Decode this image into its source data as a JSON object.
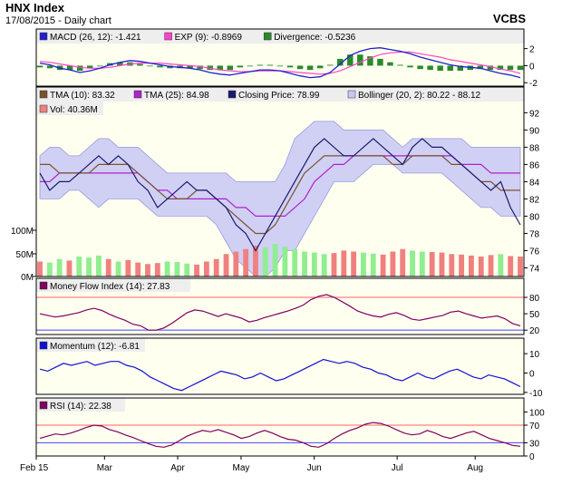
{
  "header": {
    "title": "HNX Index",
    "subtitle": "17/08/2015 - Daily chart",
    "brand": "VCBS"
  },
  "colors": {
    "plot_bg": "#fffff0",
    "legend_bg": "#eeeeee",
    "band_fill": "#c8c8f4",
    "close": "#1a1a6e",
    "tma10": "#7a5230",
    "tma25": "#b020d0",
    "macd": "#2020d0",
    "exp": "#ff44cc",
    "div": "#2a8a2a",
    "vol_up": "#90ee90",
    "vol_down": "#f08080",
    "mfi": "#800060",
    "momentum": "#1010d0",
    "rsi": "#800060",
    "ref_red": "#ff6060",
    "ref_blue": "#4444ff"
  },
  "chart_data": [
    {
      "type": "line",
      "name": "macd-panel",
      "legend": [
        "MACD (26, 12): -1.421",
        "EXP (9): -0.8969",
        "Divergence: -0.5236"
      ],
      "y_ticks": [
        "2",
        "0",
        "-2"
      ],
      "tick_values": [
        2,
        0,
        -2
      ],
      "ylim": [
        -2.4,
        2.6
      ],
      "macd": [
        0.3,
        0.1,
        -0.3,
        -0.5,
        -0.8,
        -0.6,
        -0.3,
        0.1,
        0.4,
        0.6,
        0.5,
        0.3,
        0.1,
        -0.1,
        -0.2,
        -0.3,
        -0.5,
        -0.8,
        -1.0,
        -1.1,
        -0.9,
        -0.7,
        -0.5,
        -0.5,
        -0.6,
        -0.9,
        -1.2,
        -1.4,
        -1.3,
        -0.8,
        0.2,
        1.2,
        1.7,
        2.0,
        2.1,
        1.9,
        1.7,
        1.4,
        1.0,
        0.7,
        0.4,
        0.1,
        -0.1,
        -0.2,
        -0.3,
        -0.6,
        -0.9,
        -1.1,
        -1.4
      ],
      "exp": [
        0.5,
        0.4,
        0.2,
        0.0,
        -0.2,
        -0.3,
        -0.3,
        -0.2,
        0.0,
        0.2,
        0.3,
        0.3,
        0.3,
        0.2,
        0.1,
        0.0,
        -0.1,
        -0.3,
        -0.5,
        -0.6,
        -0.7,
        -0.7,
        -0.6,
        -0.6,
        -0.6,
        -0.7,
        -0.8,
        -0.9,
        -1.0,
        -0.9,
        -0.6,
        -0.1,
        0.4,
        0.9,
        1.3,
        1.5,
        1.6,
        1.6,
        1.4,
        1.2,
        1.0,
        0.7,
        0.5,
        0.3,
        0.1,
        -0.1,
        -0.4,
        -0.6,
        -0.9
      ],
      "divergence": [
        -0.2,
        -0.3,
        -0.5,
        -0.5,
        -0.6,
        -0.3,
        0.0,
        0.3,
        0.4,
        0.4,
        0.2,
        0.0,
        -0.2,
        -0.3,
        -0.3,
        -0.3,
        -0.4,
        -0.5,
        -0.5,
        -0.5,
        -0.2,
        0.0,
        0.1,
        0.1,
        0.0,
        -0.2,
        -0.4,
        -0.5,
        -0.3,
        0.1,
        0.8,
        1.3,
        1.3,
        1.1,
        0.8,
        0.4,
        0.1,
        -0.2,
        -0.4,
        -0.5,
        -0.6,
        -0.6,
        -0.6,
        -0.5,
        -0.4,
        -0.5,
        -0.5,
        -0.5,
        -0.5
      ]
    },
    {
      "type": "line",
      "name": "price-panel",
      "legend": [
        "TMA (10): 83.32",
        "TMA (25): 84.98",
        "Closing Price: 78.99",
        "Bollinger (20, 2): 80.22 - 88.12",
        "Vol: 40.36M"
      ],
      "y_ticks": [
        "92",
        "90",
        "88",
        "86",
        "84",
        "82",
        "80",
        "78",
        "76",
        "74"
      ],
      "tick_values": [
        92,
        90,
        88,
        86,
        84,
        82,
        80,
        78,
        76,
        74
      ],
      "ylim": [
        73,
        93.3
      ],
      "vol_ticks": [
        "100M",
        "50M",
        "0M"
      ],
      "vol_tick_values": [
        100,
        50,
        0
      ],
      "vol_max": 200,
      "close": [
        85,
        83,
        84,
        84,
        85,
        86,
        87,
        86,
        87,
        86,
        84,
        83,
        81,
        82,
        83,
        84,
        83,
        83,
        82,
        81,
        79,
        78,
        76,
        78,
        80,
        82,
        84,
        86,
        88,
        89,
        88,
        87,
        87,
        88,
        89,
        88,
        87,
        86,
        88,
        89,
        88,
        88,
        87,
        86,
        85,
        84,
        83,
        84,
        81,
        79
      ],
      "tma10": [
        86,
        86,
        85,
        85,
        85,
        85,
        86,
        86,
        86,
        86,
        85,
        84,
        83,
        82,
        82,
        82,
        83,
        83,
        82,
        81,
        80,
        79,
        78,
        78,
        79,
        81,
        83,
        85,
        86,
        87,
        87,
        87,
        87,
        87,
        87,
        87,
        86,
        86,
        87,
        87,
        87,
        87,
        86,
        86,
        85,
        84,
        84,
        83,
        83,
        83
      ],
      "tma25": [
        84,
        84,
        85,
        85,
        85,
        85,
        85,
        85,
        85,
        85,
        85,
        84,
        83,
        83,
        82,
        82,
        82,
        82,
        82,
        82,
        81,
        81,
        80,
        80,
        80,
        80,
        81,
        82,
        84,
        85,
        86,
        86,
        87,
        87,
        87,
        87,
        87,
        87,
        87,
        87,
        87,
        87,
        87,
        86,
        86,
        86,
        85,
        85,
        85,
        85
      ],
      "boll_upper": [
        87,
        88,
        88,
        87,
        87,
        88,
        89,
        89,
        88,
        88,
        88,
        87,
        86,
        85,
        85,
        85,
        85,
        85,
        85,
        85,
        84,
        84,
        84,
        84,
        84,
        86,
        89,
        90,
        91,
        91,
        91,
        90,
        90,
        90,
        90,
        90,
        89,
        88,
        89,
        89,
        89,
        89,
        89,
        89,
        88,
        88,
        88,
        88,
        88,
        88
      ],
      "boll_lower": [
        82,
        82,
        82,
        83,
        83,
        82,
        81,
        82,
        82,
        82,
        82,
        81,
        80,
        80,
        80,
        80,
        80,
        80,
        79,
        77,
        75,
        74,
        73,
        73,
        74,
        76,
        76,
        78,
        80,
        82,
        84,
        84,
        84,
        85,
        86,
        86,
        86,
        85,
        85,
        85,
        85,
        85,
        84,
        83,
        82,
        81,
        81,
        80,
        80,
        80
      ],
      "volume": [
        30,
        28,
        35,
        32,
        40,
        38,
        42,
        35,
        30,
        33,
        28,
        25,
        27,
        30,
        29,
        26,
        24,
        30,
        35,
        45,
        50,
        55,
        62,
        58,
        65,
        60,
        55,
        50,
        48,
        45,
        47,
        52,
        50,
        48,
        46,
        44,
        50,
        55,
        52,
        50,
        49,
        48,
        45,
        44,
        42,
        40,
        43,
        45,
        41,
        40
      ],
      "volume_direction": [
        "down",
        "up",
        "up",
        "down",
        "up",
        "up",
        "up",
        "down",
        "up",
        "down",
        "down",
        "down",
        "down",
        "up",
        "up",
        "up",
        "down",
        "down",
        "down",
        "down",
        "down",
        "down",
        "down",
        "up",
        "up",
        "up",
        "up",
        "up",
        "up",
        "up",
        "down",
        "down",
        "down",
        "up",
        "up",
        "down",
        "down",
        "down",
        "up",
        "up",
        "down",
        "down",
        "down",
        "down",
        "down",
        "down",
        "down",
        "up",
        "down",
        "down"
      ]
    },
    {
      "type": "line",
      "name": "mfi-panel",
      "legend": [
        "Money Flow Index (14): 27.83"
      ],
      "y_ticks": [
        "80",
        "50",
        "20"
      ],
      "tick_values": [
        80,
        50,
        20
      ],
      "ylim": [
        12,
        90
      ],
      "reference_lines": [
        80,
        20
      ],
      "values": [
        50,
        47,
        44,
        46,
        49,
        52,
        57,
        60,
        56,
        49,
        43,
        38,
        31,
        28,
        20,
        20,
        24,
        32,
        42,
        52,
        57,
        55,
        50,
        45,
        50,
        46,
        42,
        35,
        38,
        43,
        47,
        51,
        55,
        60,
        66,
        76,
        82,
        85,
        80,
        72,
        64,
        55,
        50,
        46,
        44,
        49,
        52,
        47,
        40,
        38,
        41,
        44,
        47,
        53,
        55,
        50,
        46,
        42,
        44,
        46,
        41,
        32,
        28
      ]
    },
    {
      "type": "line",
      "name": "momentum-panel",
      "legend": [
        "Momentum (12): -6.81"
      ],
      "y_ticks": [
        "10",
        "0",
        "-10"
      ],
      "tick_values": [
        10,
        0,
        -10
      ],
      "ylim": [
        -11,
        11
      ],
      "values": [
        2,
        1,
        3,
        5,
        4,
        5,
        6,
        4,
        5,
        6,
        6,
        4,
        3,
        1,
        -2,
        -4,
        -6,
        -8,
        -9,
        -7,
        -5,
        -3,
        -1,
        1,
        0,
        -1,
        -3,
        -2,
        0,
        -2,
        -4,
        -3,
        -1,
        1,
        3,
        5,
        7,
        6,
        5,
        6,
        5,
        3,
        2,
        0,
        -1,
        -3,
        -4,
        -2,
        0,
        -2,
        -3,
        -1,
        1,
        2,
        0,
        -2,
        -3,
        -1,
        -2,
        -3,
        -5,
        -7
      ]
    },
    {
      "type": "line",
      "name": "rsi-panel",
      "legend": [
        "RSI (14): 22.38"
      ],
      "y_ticks": [
        "100",
        "70",
        "30",
        "0"
      ],
      "tick_values": [
        100,
        70,
        30,
        0
      ],
      "ylim": [
        0,
        105
      ],
      "reference_lines": [
        70,
        30
      ],
      "values": [
        40,
        45,
        50,
        48,
        52,
        58,
        65,
        70,
        68,
        60,
        55,
        48,
        42,
        35,
        28,
        22,
        20,
        25,
        35,
        45,
        52,
        58,
        55,
        60,
        54,
        48,
        40,
        44,
        52,
        58,
        52,
        44,
        38,
        36,
        30,
        22,
        20,
        28,
        40,
        50,
        58,
        64,
        72,
        76,
        74,
        68,
        60,
        52,
        48,
        50,
        58,
        52,
        44,
        40,
        46,
        52,
        56,
        48,
        40,
        35,
        30,
        24,
        22
      ],
      "x_ticks": [
        "Feb 15",
        "Mar",
        "Apr",
        "May",
        "Jun",
        "Jul",
        "Aug"
      ],
      "x_tick_positions": [
        0,
        0.14,
        0.29,
        0.42,
        0.57,
        0.74,
        0.9
      ]
    }
  ]
}
